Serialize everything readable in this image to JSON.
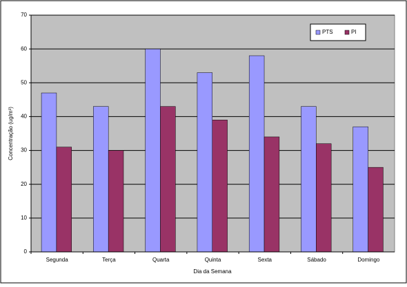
{
  "chart_data": {
    "type": "bar",
    "x_label": "Dia da Semana",
    "y_label": "Concentração (ug/m³)",
    "categories": [
      "Segunda",
      "Terça",
      "Quarta",
      "Quinta",
      "Sexta",
      "Sábado",
      "Domingo"
    ],
    "series": [
      {
        "name": "PTS",
        "color": "#9999ff",
        "values": [
          47,
          43,
          60,
          53,
          58,
          43,
          37
        ]
      },
      {
        "name": "PI",
        "color": "#993366",
        "values": [
          31,
          30,
          43,
          39,
          34,
          32,
          25
        ]
      }
    ],
    "ylim": [
      0,
      70
    ],
    "yticks": [
      0,
      10,
      20,
      30,
      40,
      50,
      60,
      70
    ],
    "grid": true,
    "legend": "top-right"
  }
}
